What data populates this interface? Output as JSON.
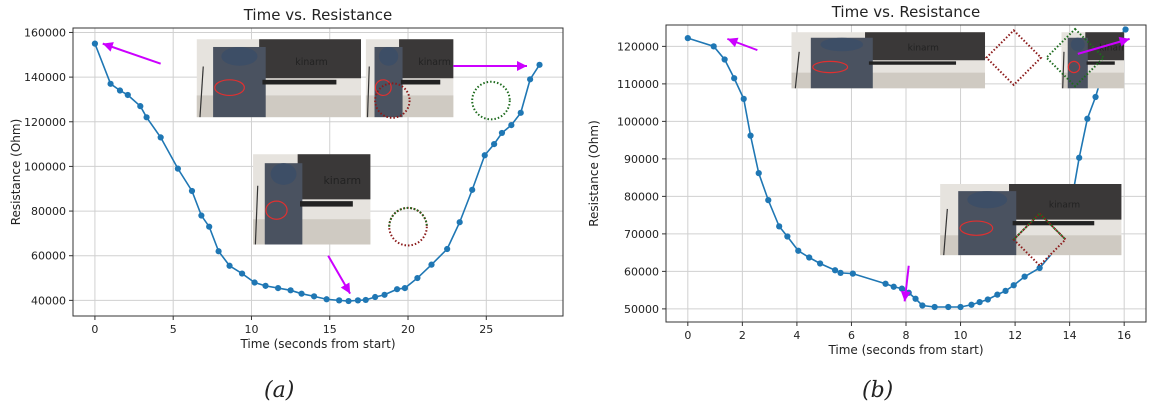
{
  "captions": [
    "(a)",
    "(b)"
  ],
  "photo_logo_text": "kinarm",
  "colors": {
    "series": "#1f77b4",
    "grid": "#d0d0d0",
    "arrow": "#cc00ff",
    "marker_red": "#8b1a1a",
    "marker_green": "#1e6b1e",
    "photo_ring": "#e03030"
  },
  "chart_data": [
    {
      "type": "line",
      "title": "Time vs. Resistance",
      "xlabel": "Time (seconds from start)",
      "ylabel": "Resistance (Ohm)",
      "xlim": [
        -1.4,
        29.9
      ],
      "ylim": [
        33000,
        162000
      ],
      "xticks": [
        0,
        5,
        10,
        15,
        20,
        25
      ],
      "xtick_labels": [
        "0",
        "5",
        "10",
        "15",
        "20",
        "25"
      ],
      "yticks": [
        40000,
        60000,
        80000,
        100000,
        120000,
        140000,
        160000
      ],
      "ytick_labels": [
        "40000",
        "60000",
        "80000",
        "100000",
        "120000",
        "140000",
        "160000"
      ],
      "grid": true,
      "series": [
        {
          "x": [
            0,
            1,
            1.6,
            2.1,
            2.9,
            3.3,
            4.2,
            5.3,
            6.2,
            6.8,
            7.3,
            7.9,
            8.6,
            9.4,
            10.2,
            10.9,
            11.7,
            12.5,
            13.2,
            14.0,
            14.8,
            15.6,
            16.2,
            16.8,
            17.3,
            17.9,
            18.5,
            19.3,
            19.8,
            20.6,
            21.5,
            22.5,
            23.3,
            24.1,
            24.9,
            25.5,
            26.0,
            26.6,
            27.2,
            27.8,
            28.4
          ],
          "y": [
            155000,
            137000,
            134000,
            132000,
            127000,
            122000,
            113000,
            99000,
            89000,
            78000,
            73000,
            62000,
            55500,
            52000,
            48000,
            46500,
            45500,
            44500,
            43000,
            41800,
            40500,
            40000,
            39700,
            40000,
            40200,
            41500,
            42500,
            45000,
            45500,
            50000,
            56000,
            63000,
            75000,
            89500,
            105000,
            110000,
            115000,
            118500,
            124000,
            139000,
            145500
          ]
        }
      ],
      "annotations": [
        {
          "type": "photo",
          "x": 6.5,
          "y": 157000,
          "x2": 17.0,
          "y2": 122000
        },
        {
          "type": "photo",
          "x": 17.3,
          "y": 157000,
          "x2": 22.9,
          "y2": 122000
        },
        {
          "type": "photo",
          "x": 10.1,
          "y": 105500,
          "x2": 17.6,
          "y2": 65000
        },
        {
          "type": "circle",
          "x": 19.0,
          "y": 129500,
          "r": 1.1,
          "color": "#8b1a1a"
        },
        {
          "type": "circle",
          "x": 25.3,
          "y": 129500,
          "r": 1.2,
          "color": "#1e6b1e"
        },
        {
          "type": "circle",
          "x": 20.0,
          "y": 73000,
          "r": 1.2,
          "color": "mixed"
        },
        {
          "type": "arrow",
          "from": [
            4.2,
            146000
          ],
          "to": [
            0.5,
            155000
          ]
        },
        {
          "type": "arrow",
          "from": [
            22.9,
            145000
          ],
          "to": [
            27.6,
            145000
          ]
        },
        {
          "type": "arrow",
          "from": [
            14.9,
            60000
          ],
          "to": [
            16.3,
            43000
          ]
        }
      ]
    },
    {
      "type": "line",
      "title": "Time vs. Resistance",
      "xlabel": "Time (seconds from start)",
      "ylabel": "Resistance (Ohm)",
      "xlim": [
        -0.8,
        16.8
      ],
      "ylim": [
        46500,
        125700
      ],
      "xticks": [
        0,
        2,
        4,
        6,
        8,
        10,
        12,
        14,
        16
      ],
      "xtick_labels": [
        "0",
        "2",
        "4",
        "6",
        "8",
        "10",
        "12",
        "14",
        "16"
      ],
      "yticks": [
        50000,
        60000,
        70000,
        80000,
        90000,
        100000,
        110000,
        120000
      ],
      "ytick_labels": [
        "50000",
        "60000",
        "70000",
        "80000",
        "90000",
        "100000",
        "110000",
        "120000"
      ],
      "grid": true,
      "series": [
        {
          "x": [
            0,
            0.95,
            1.35,
            1.7,
            2.05,
            2.3,
            2.6,
            2.95,
            3.35,
            3.65,
            4.05,
            4.45,
            4.85,
            5.4,
            5.6,
            6.05,
            7.25,
            7.55,
            7.85,
            8.1,
            8.35,
            8.6,
            9.05,
            9.55,
            10.0,
            10.4,
            10.7,
            11.0,
            11.35,
            11.65,
            11.95,
            12.35,
            12.9,
            13.65,
            14.05,
            14.35,
            14.65,
            14.95,
            15.2,
            15.5,
            15.75,
            16.05
          ],
          "y": [
            122200,
            120000,
            116500,
            111500,
            106000,
            96200,
            86200,
            79000,
            72000,
            69300,
            65500,
            63700,
            62100,
            60300,
            59600,
            59400,
            56700,
            55900,
            55400,
            54300,
            52700,
            50900,
            50500,
            50500,
            50500,
            51100,
            51800,
            52500,
            53800,
            54800,
            56300,
            58600,
            60900,
            67300,
            77800,
            90300,
            100700,
            106500,
            112600,
            116500,
            122200,
            124500
          ]
        }
      ],
      "annotations": [
        {
          "type": "photo",
          "x": 3.8,
          "y": 123800,
          "x2": 10.9,
          "y2": 108800
        },
        {
          "type": "photo",
          "x": 13.7,
          "y": 123800,
          "x2": 16.0,
          "y2": 108800
        },
        {
          "type": "photo",
          "x": 9.25,
          "y": 83300,
          "x2": 15.9,
          "y2": 64300
        },
        {
          "type": "diamond",
          "x": 11.95,
          "y": 117000,
          "r": 1.0,
          "color": "#8b1a1a"
        },
        {
          "type": "diamond",
          "x": 14.2,
          "y": 117000,
          "r": 1.05,
          "color": "#1e6b1e"
        },
        {
          "type": "diamond",
          "x": 12.9,
          "y": 68500,
          "r": 0.95,
          "color": "mixed"
        },
        {
          "type": "arrow",
          "from": [
            2.55,
            119000
          ],
          "to": [
            1.45,
            122000
          ]
        },
        {
          "type": "arrow",
          "from": [
            14.3,
            118000
          ],
          "to": [
            16.2,
            122000
          ]
        },
        {
          "type": "arrow",
          "from": [
            8.1,
            61500
          ],
          "to": [
            7.95,
            52000
          ]
        }
      ]
    }
  ]
}
